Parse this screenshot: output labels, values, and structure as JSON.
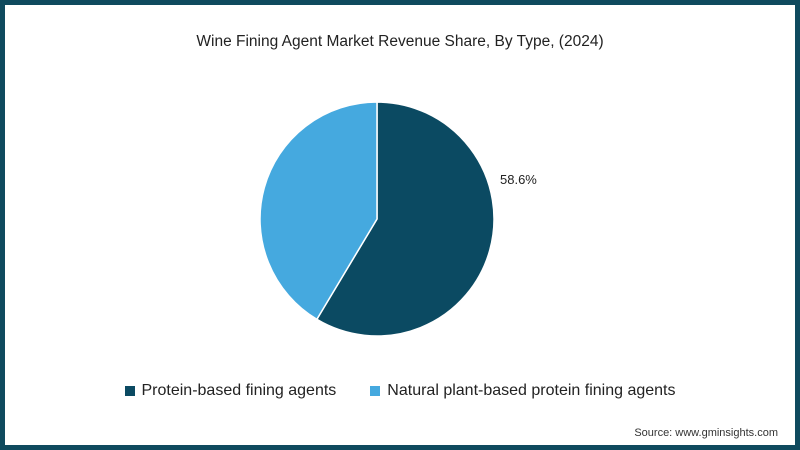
{
  "chart_data": {
    "type": "pie",
    "title": "Wine Fining Agent Market Revenue Share, By Type, (2024)",
    "categories": [
      "Protein-based fining agents",
      "Natural plant-based protein fining agents"
    ],
    "values": [
      58.6,
      41.4
    ],
    "colors": [
      "#0b4a62",
      "#45a9df"
    ],
    "data_labels": [
      "58.6%",
      ""
    ],
    "legend_position": "bottom",
    "source": "Source: www.gminsights.com"
  },
  "title": "Wine Fining Agent Market Revenue Share, By Type, (2024)",
  "labels": {
    "slice0": "58.6%"
  },
  "legend": [
    {
      "label": "Protein-based fining agents",
      "color": "#0b4a62"
    },
    {
      "label": "Natural plant-based protein fining agents",
      "color": "#45a9df"
    }
  ],
  "source": "Source: www.gminsights.com"
}
